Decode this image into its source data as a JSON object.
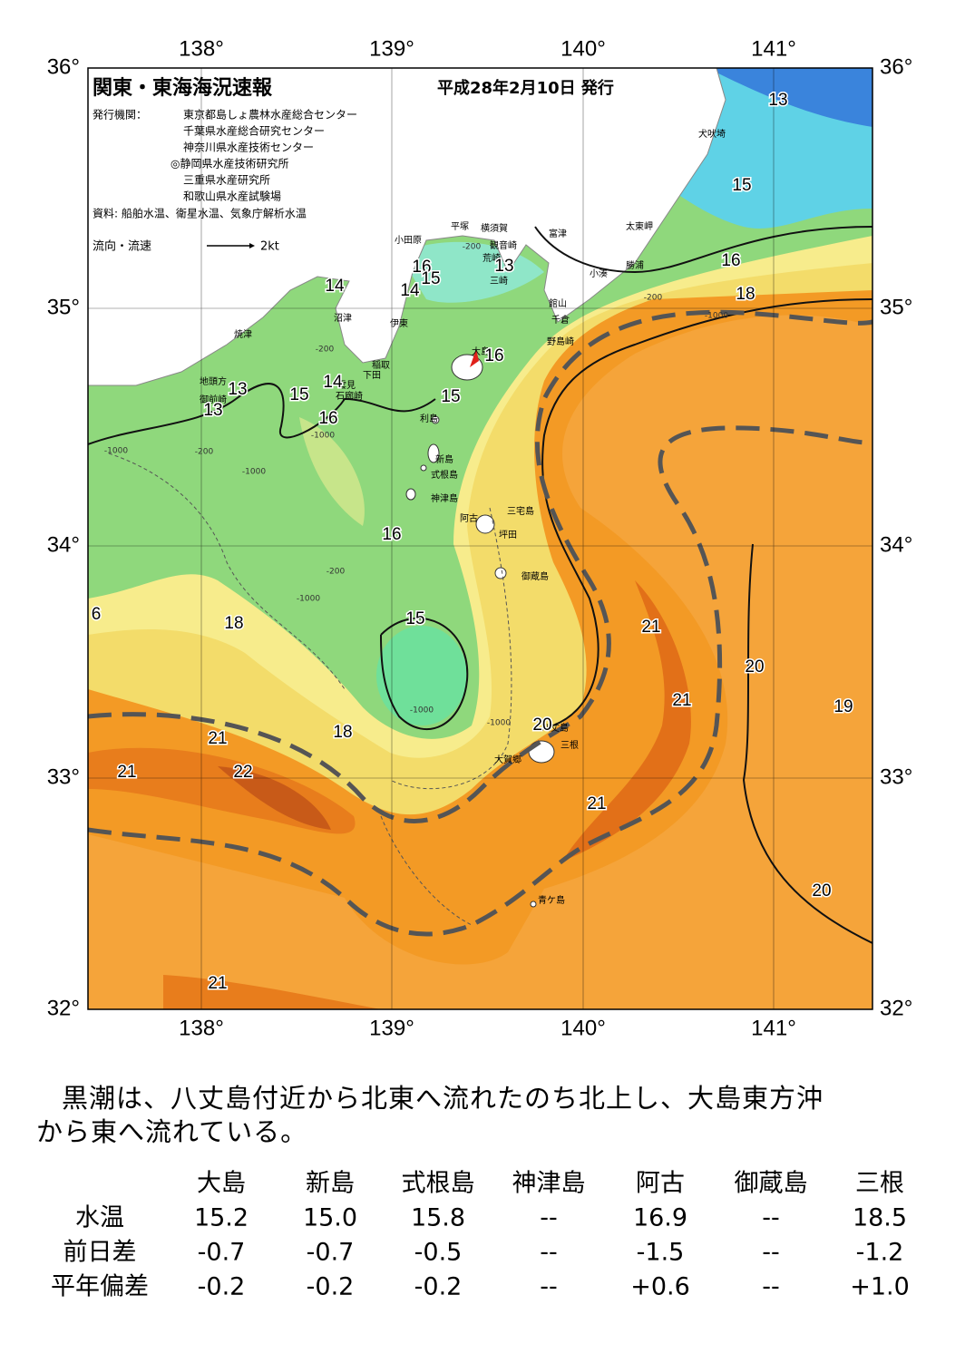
{
  "header": {
    "title": "関東・東海海況速報",
    "date": "平成28年2月10日 発行",
    "publisher_label": "発行機関：",
    "publishers": [
      "東京都島しょ農林水産総合センター",
      "千葉県水産総合研究センター",
      "神奈川県水産技術センター",
      "◎静岡県水産技術研究所",
      "三重県水産研究所",
      "和歌山県水産試験場"
    ],
    "source": "資料: 船舶水温、衛星水温、気象庁解析水温",
    "flow_label": "流向・流速",
    "flow_unit": "2kt"
  },
  "map": {
    "lon_labels": [
      "138°",
      "139°",
      "140°",
      "141°"
    ],
    "lat_labels": [
      "36°",
      "35°",
      "34°",
      "33°",
      "32°"
    ],
    "places": [
      "犬吠埼",
      "太東岬",
      "勝浦",
      "小湊",
      "館山",
      "千倉",
      "野島崎",
      "富津",
      "横須賀",
      "観音崎",
      "平塚",
      "小田原",
      "荒崎",
      "三崎",
      "沼津",
      "伊東",
      "焼津",
      "稲取",
      "下田",
      "雲見",
      "石廊崎",
      "地頭方",
      "御前崎",
      "大島",
      "利島",
      "新島",
      "式根島",
      "神津島",
      "三宅島",
      "阿古",
      "坪田",
      "御蔵島",
      "八丈島",
      "三根",
      "大賀郷",
      "青ケ島"
    ],
    "temperature_labels": [
      "13",
      "15",
      "16",
      "18",
      "16",
      "15",
      "14",
      "13",
      "14",
      "14",
      "15",
      "16",
      "13",
      "13",
      "16",
      "15",
      "16",
      "6",
      "18",
      "15",
      "21",
      "20",
      "21",
      "19",
      "18",
      "21",
      "20",
      "21",
      "22",
      "21",
      "20",
      "21"
    ],
    "depth_labels": [
      "-200",
      "-200",
      "-1000",
      "-200",
      "-1000",
      "-200",
      "-1000",
      "-1000",
      "-200",
      "-1000",
      "-1000",
      "-1000"
    ]
  },
  "caption": [
    "黒潮は、八丈島付近から北東へ流れたのち北上し、大島東方沖",
    "から東へ流れている。"
  ],
  "table": {
    "columns": [
      "大島",
      "新島",
      "式根島",
      "神津島",
      "阿古",
      "御蔵島",
      "三根"
    ],
    "rows": [
      {
        "label": "水温",
        "cells": [
          "15.2",
          "15.0",
          "15.8",
          "--",
          "16.9",
          "--",
          "18.5"
        ]
      },
      {
        "label": "前日差",
        "cells": [
          "-0.7",
          "-0.7",
          "-0.5",
          "--",
          "-1.5",
          "--",
          "-1.2"
        ]
      },
      {
        "label": "平年偏差",
        "cells": [
          "-0.2",
          "-0.2",
          "-0.2",
          "--",
          "+0.6",
          "--",
          "+1.0"
        ]
      }
    ]
  }
}
